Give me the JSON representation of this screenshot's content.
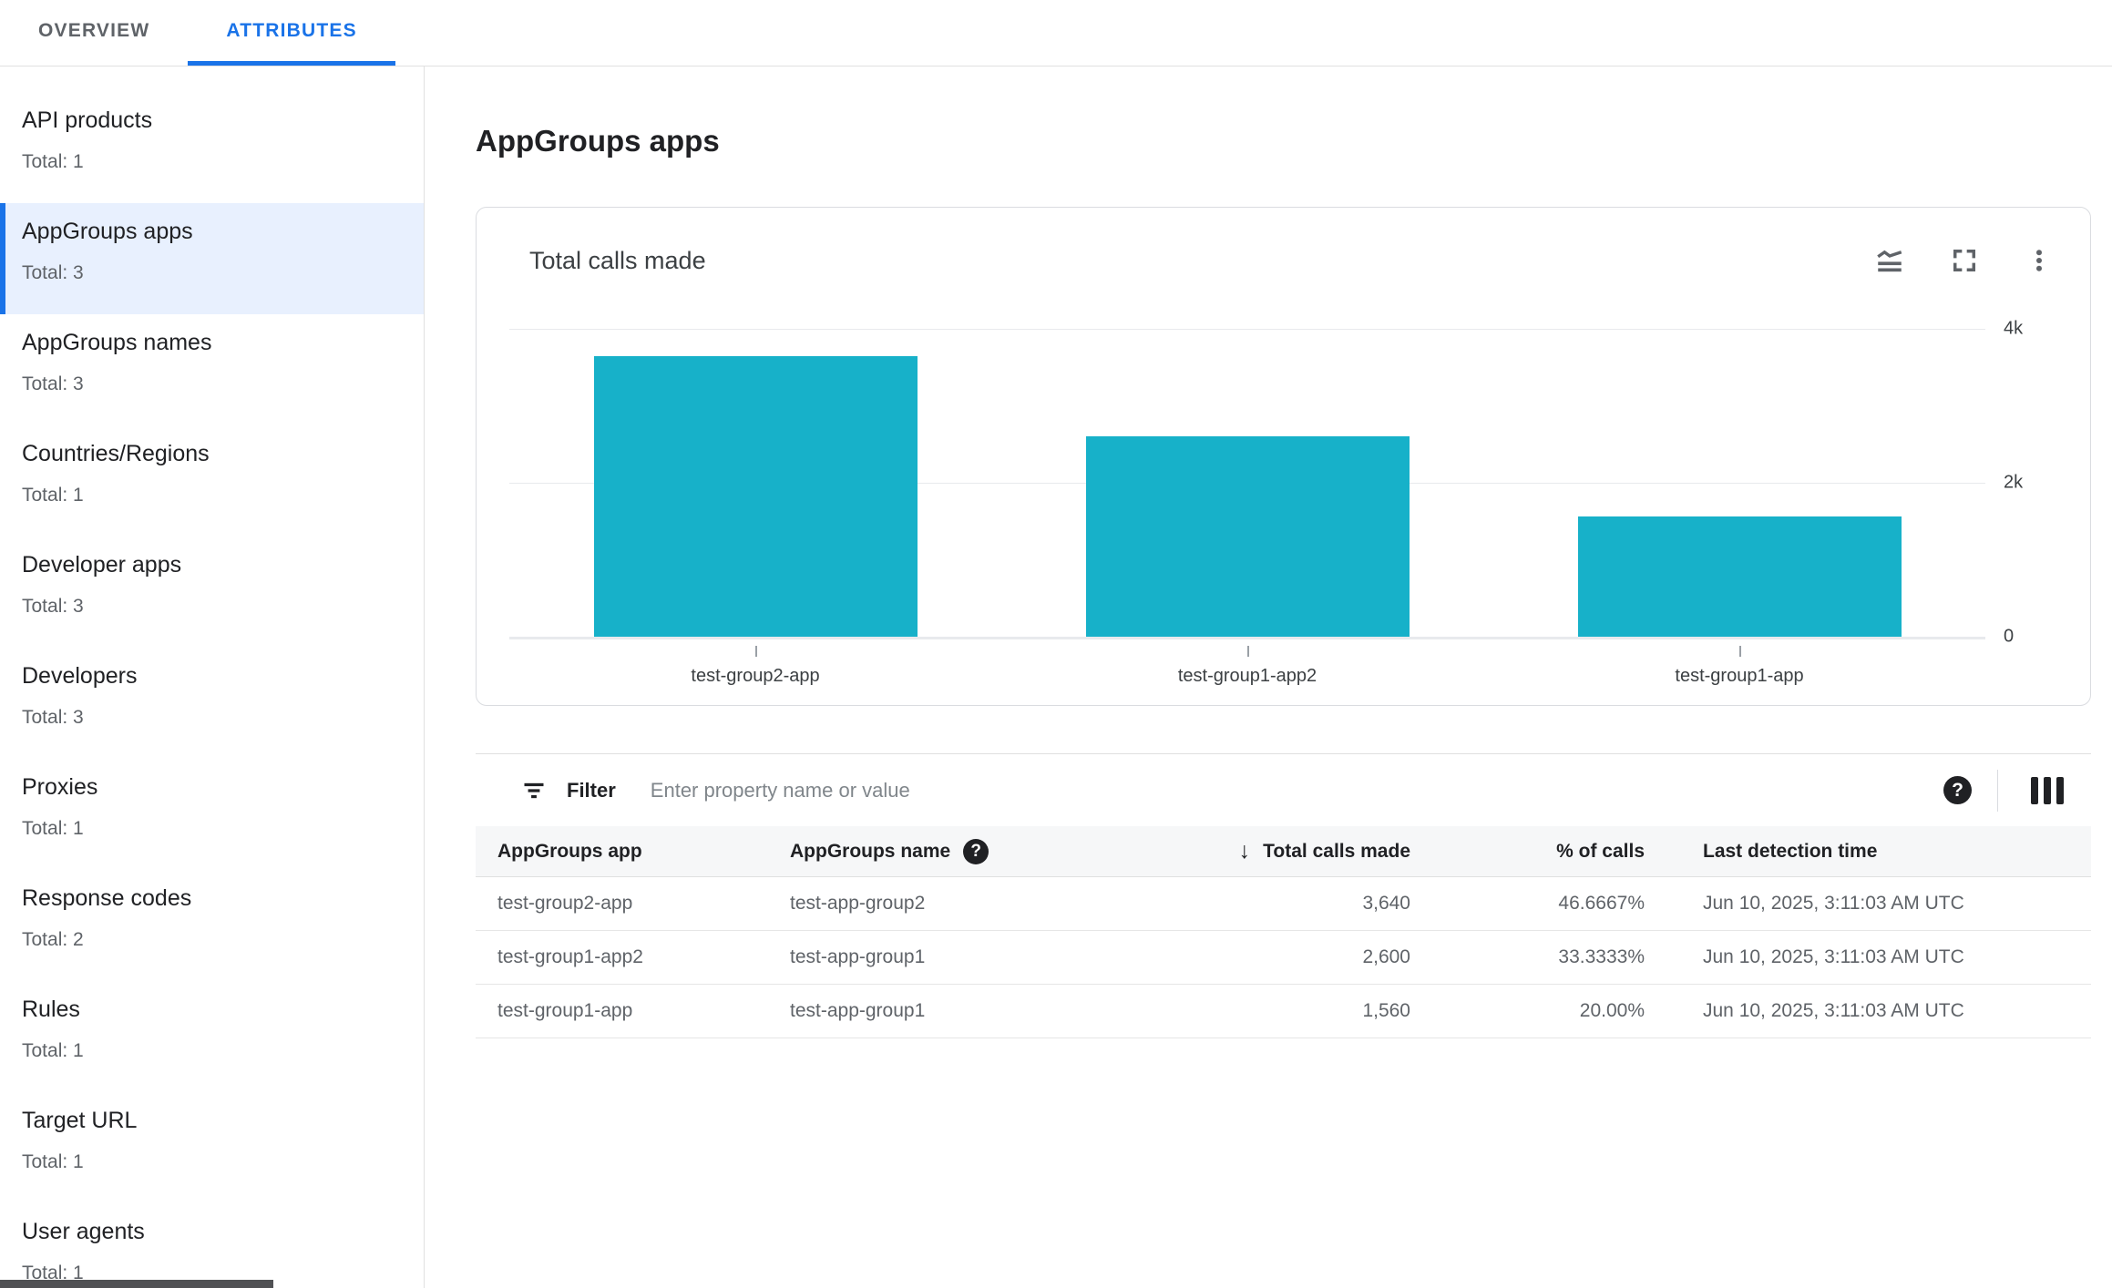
{
  "tabs": [
    {
      "label": "OVERVIEW",
      "active": false
    },
    {
      "label": "ATTRIBUTES",
      "active": true
    }
  ],
  "sidebar": {
    "items": [
      {
        "label": "API products",
        "total": "Total: 1",
        "selected": false
      },
      {
        "label": "AppGroups apps",
        "total": "Total: 3",
        "selected": true
      },
      {
        "label": "AppGroups names",
        "total": "Total: 3",
        "selected": false
      },
      {
        "label": "Countries/Regions",
        "total": "Total: 1",
        "selected": false
      },
      {
        "label": "Developer apps",
        "total": "Total: 3",
        "selected": false
      },
      {
        "label": "Developers",
        "total": "Total: 3",
        "selected": false
      },
      {
        "label": "Proxies",
        "total": "Total: 1",
        "selected": false
      },
      {
        "label": "Response codes",
        "total": "Total: 2",
        "selected": false
      },
      {
        "label": "Rules",
        "total": "Total: 1",
        "selected": false
      },
      {
        "label": "Target URL",
        "total": "Total: 1",
        "selected": false
      },
      {
        "label": "User agents",
        "total": "Total: 1",
        "selected": false
      }
    ]
  },
  "page_title": "AppGroups apps",
  "chart_card": {
    "title": "Total calls made"
  },
  "chart_data": {
    "type": "bar",
    "title": "Total calls made",
    "categories": [
      "test-group2-app",
      "test-group1-app2",
      "test-group1-app"
    ],
    "values": [
      3640,
      2600,
      1560
    ],
    "ylim": [
      0,
      4000
    ],
    "yticks": [
      {
        "value": 4000,
        "label": "4k"
      },
      {
        "value": 2000,
        "label": "2k"
      },
      {
        "value": 0,
        "label": "0"
      }
    ],
    "bar_color": "#17b1c9",
    "grid": true,
    "legend": "none",
    "xlabel": "",
    "ylabel": ""
  },
  "filter": {
    "label": "Filter",
    "placeholder": "Enter property name or value"
  },
  "table": {
    "columns": [
      {
        "label": "AppGroups app"
      },
      {
        "label": "AppGroups name"
      },
      {
        "label": "Total calls made"
      },
      {
        "label": "% of calls"
      },
      {
        "label": "Last detection time"
      }
    ],
    "sort_icon": "↓",
    "help_glyph": "?",
    "rows": [
      {
        "app": "test-group2-app",
        "name": "test-app-group2",
        "calls": "3,640",
        "pct": "46.6667%",
        "time": "Jun 10, 2025, 3:11:03 AM UTC"
      },
      {
        "app": "test-group1-app2",
        "name": "test-app-group1",
        "calls": "2,600",
        "pct": "33.3333%",
        "time": "Jun 10, 2025, 3:11:03 AM UTC"
      },
      {
        "app": "test-group1-app",
        "name": "test-app-group1",
        "calls": "1,560",
        "pct": "20.00%",
        "time": "Jun 10, 2025, 3:11:03 AM UTC"
      }
    ]
  },
  "colors": {
    "accent_blue": "#1a73e8",
    "selected_bg": "#e8f0fe",
    "bar_teal": "#17b1c9",
    "gridline": "#e8eaed"
  }
}
